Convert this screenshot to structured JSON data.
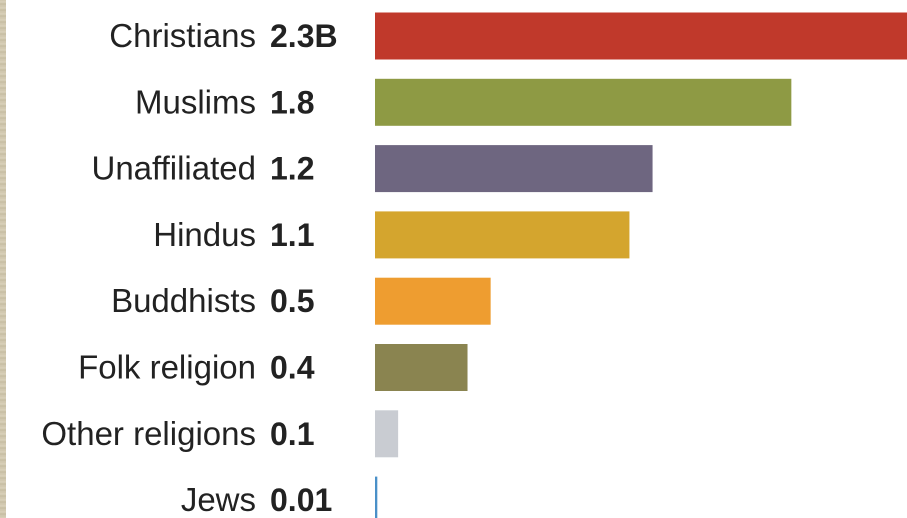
{
  "chart_data": {
    "type": "bar",
    "orientation": "horizontal",
    "categories": [
      "Christians",
      "Muslims",
      "Unaffiliated",
      "Hindus",
      "Buddhists",
      "Folk religion",
      "Other religions",
      "Jews"
    ],
    "values": [
      2.3,
      1.8,
      1.2,
      1.1,
      0.5,
      0.4,
      0.1,
      0.01
    ],
    "value_labels": [
      "2.3B",
      "1.8",
      "1.2",
      "1.1",
      "0.5",
      "0.4",
      "0.1",
      "0.01"
    ],
    "colors": [
      "#c0392b",
      "#8e9a44",
      "#6e6680",
      "#d4a52e",
      "#ee9d30",
      "#8a8450",
      "#c9ccd2",
      "#4a90c8"
    ],
    "title": "",
    "xlabel": "",
    "ylabel": "",
    "xlim": [
      0,
      2.3
    ],
    "grid": false,
    "legend": "none"
  }
}
